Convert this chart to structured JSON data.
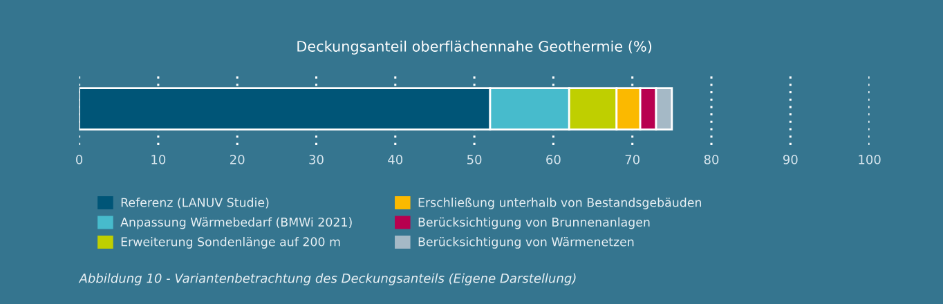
{
  "chart_data": {
    "type": "bar",
    "orientation": "horizontal",
    "stacked": true,
    "title": "Deckungsanteil oberflächennahe Geothermie (%)",
    "categories": [
      null
    ],
    "series": [
      {
        "name": "Referenz (LANUV Studie)",
        "color": "#005577",
        "values": [
          52
        ]
      },
      {
        "name": "Anpassung Wärmebedarf (BMWi 2021)",
        "color": "#47bbcc",
        "values": [
          10
        ]
      },
      {
        "name": "Erweiterung Sondenlänge auf 200 m",
        "color": "#bfcf00",
        "values": [
          6
        ]
      },
      {
        "name": "Erschließung unterhalb von Bestandsgebäuden",
        "color": "#fbb900",
        "values": [
          3
        ]
      },
      {
        "name": "Berücksichtigung von Brunnenanlagen",
        "color": "#b8004f",
        "values": [
          2
        ]
      },
      {
        "name": "Berücksichtigung von Wärmenetzen",
        "color": "#a5b9c6",
        "values": [
          2
        ]
      }
    ],
    "xlim": [
      0,
      100
    ],
    "xticks": [
      0,
      10,
      20,
      30,
      40,
      50,
      60,
      70,
      80,
      90,
      100
    ],
    "grid": "x",
    "legend": "bottom",
    "annotations": [
      "Abbildung 10 - Variantenbetrachtung des Deckungsanteils (Eigene Darstellung)"
    ]
  }
}
